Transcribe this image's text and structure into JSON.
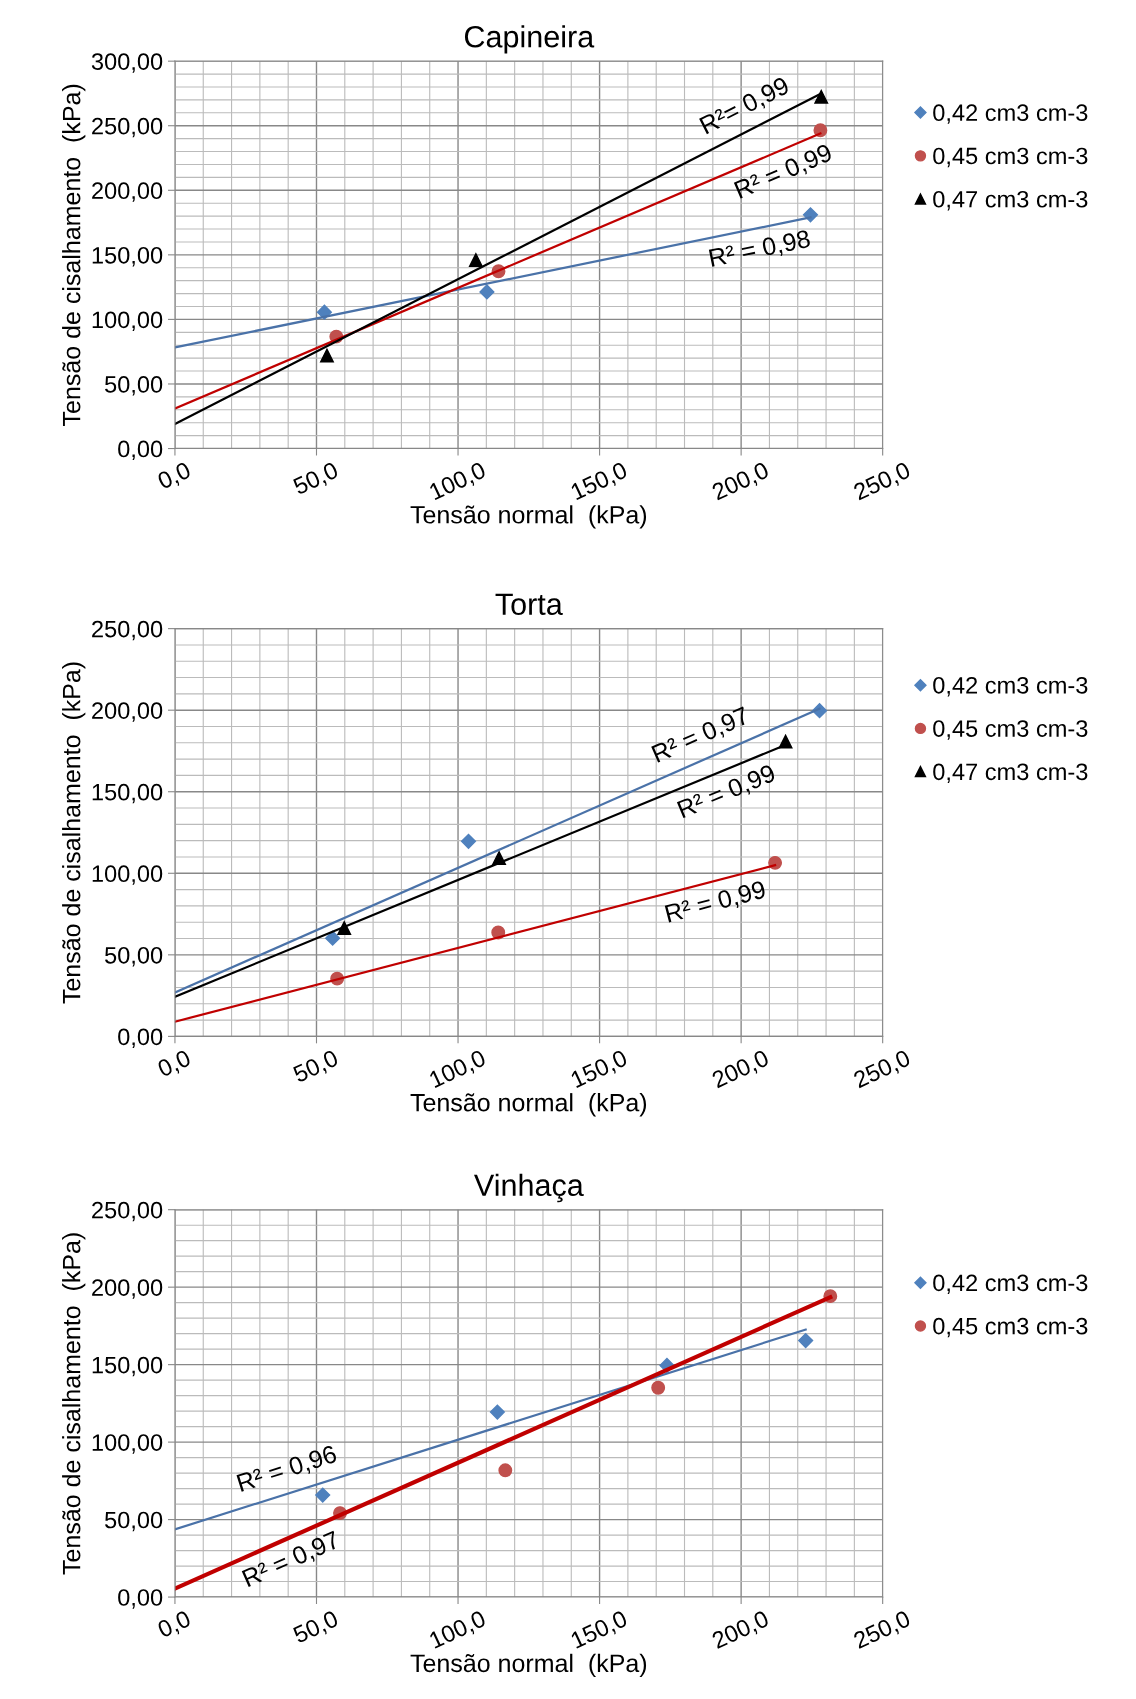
{
  "chart_data": [
    {
      "type": "scatter",
      "title": "Capineira",
      "xlabel": "Tensão normal  (kPa)",
      "ylabel": "Tensão de cisalhamento  (kPa)",
      "legend": "right",
      "grid": true,
      "xlim": [
        0,
        250
      ],
      "xticks": [
        {
          "value": 0,
          "label": "0,0"
        },
        {
          "value": 50,
          "label": "50,0"
        },
        {
          "value": 100,
          "label": "100,0"
        },
        {
          "value": 150,
          "label": "150,0"
        },
        {
          "value": 200,
          "label": "200,0"
        },
        {
          "value": 250,
          "label": "250,0"
        }
      ],
      "ylim": [
        0,
        300
      ],
      "yticks": [
        {
          "value": 0,
          "label": "0,00"
        },
        {
          "value": 50,
          "label": "50,00"
        },
        {
          "value": 100,
          "label": "100,00"
        },
        {
          "value": 150,
          "label": "150,00"
        },
        {
          "value": 200,
          "label": "200,00"
        },
        {
          "value": 250,
          "label": "250,00"
        },
        {
          "value": 300,
          "label": "300,00"
        }
      ],
      "series": [
        {
          "name": "0,42 cm3 cm-3",
          "marker": "diamond",
          "color": "#4f81bd",
          "x": [
            52.8,
            110.2,
            224.5
          ],
          "values": [
            105.6,
            121.3,
            181
          ]
        },
        {
          "name": "0,45 cm3 cm-3",
          "marker": "circle",
          "color": "#c0504d",
          "x": [
            57,
            114.3,
            228
          ],
          "values": [
            86.7,
            137.3,
            246.5
          ]
        },
        {
          "name": "0,47 cm3 cm-3",
          "marker": "triangle",
          "color": "#000000",
          "x": [
            53.7,
            106.3,
            228.3
          ],
          "values": [
            72,
            146,
            272.4
          ]
        },
        {
          "type": "line",
          "marker": "none",
          "color": "#4a72a8",
          "x": [
            0,
            224.5
          ],
          "values": [
            78.3,
            179
          ]
        },
        {
          "type": "line",
          "marker": "none",
          "color": "#c00000",
          "x": [
            0,
            228
          ],
          "values": [
            31,
            244
          ]
        },
        {
          "type": "line",
          "marker": "none",
          "color": "#000000",
          "x": [
            0,
            228.3
          ],
          "values": [
            19,
            275
          ]
        }
      ],
      "annotations": [
        {
          "text": "R²= 0,99",
          "x": 205,
          "y": 248.9
        },
        {
          "text": "R² = 0,99",
          "x": 212,
          "y": 229.1
        },
        {
          "text": "R² = 0,98",
          "x": 205,
          "y": 170.3
        }
      ]
    },
    {
      "type": "scatter",
      "title": "Torta",
      "xlabel": "Tensão normal  (kPa)",
      "ylabel": "Tensão de cisalhamento  (kPa)",
      "legend": "right",
      "grid": true,
      "xlim": [
        0,
        250
      ],
      "xticks": [
        {
          "value": 0,
          "label": "0,0"
        },
        {
          "value": 50,
          "label": "50,0"
        },
        {
          "value": 100,
          "label": "100,0"
        },
        {
          "value": 150,
          "label": "150,0"
        },
        {
          "value": 200,
          "label": "200,0"
        },
        {
          "value": 250,
          "label": "250,0"
        }
      ],
      "ylim": [
        0,
        250
      ],
      "yticks": [
        {
          "value": 0,
          "label": "0,00"
        },
        {
          "value": 50,
          "label": "50,00"
        },
        {
          "value": 100,
          "label": "100,00"
        },
        {
          "value": 150,
          "label": "150,00"
        },
        {
          "value": 200,
          "label": "200,00"
        },
        {
          "value": 250,
          "label": "250,00"
        }
      ],
      "series": [
        {
          "name": "0,42 cm3 cm-3",
          "marker": "diamond",
          "color": "#4f81bd",
          "x": [
            55.7,
            103.7,
            227.7
          ],
          "values": [
            60.2,
            119.6,
            199.7
          ]
        },
        {
          "name": "0,45 cm3 cm-3",
          "marker": "circle",
          "color": "#c0504d",
          "x": [
            57.3,
            114.2,
            212
          ],
          "values": [
            35.4,
            63.7,
            106.4
          ]
        },
        {
          "name": "0,47 cm3 cm-3",
          "marker": "triangle",
          "color": "#000000",
          "x": [
            59.8,
            114.5,
            215.7
          ],
          "values": [
            66.4,
            109.4,
            180.7
          ]
        },
        {
          "type": "line",
          "marker": "none",
          "color": "#4a72a8",
          "x": [
            0,
            227.7
          ],
          "values": [
            26.9,
            200.9
          ]
        },
        {
          "type": "line",
          "marker": "none",
          "color": "#c00000",
          "x": [
            0,
            212
          ],
          "values": [
            9,
            105
          ]
        },
        {
          "type": "line",
          "marker": "none",
          "color": "#000000",
          "x": [
            0,
            215.7
          ],
          "values": [
            24.3,
            178.7
          ]
        }
      ],
      "annotations": [
        {
          "text": "R² = 0,97",
          "x": 189,
          "y": 171.3
        },
        {
          "text": "R² = 0,99",
          "x": 192,
          "y": 161.7
        },
        {
          "text": "R² = 0,99",
          "x": 189,
          "y": 94.6
        }
      ]
    },
    {
      "type": "scatter",
      "title": "Vinhaça",
      "xlabel": "Tensão normal  (kPa)",
      "ylabel": "Tensão de cisalhamento  (kPa)",
      "legend": "right",
      "grid": true,
      "xlim": [
        0,
        250
      ],
      "xticks": [
        {
          "value": 0,
          "label": "0,0"
        },
        {
          "value": 50,
          "label": "50,0"
        },
        {
          "value": 100,
          "label": "100,0"
        },
        {
          "value": 150,
          "label": "150,0"
        },
        {
          "value": 200,
          "label": "200,0"
        },
        {
          "value": 250,
          "label": "250,0"
        }
      ],
      "ylim": [
        0,
        250
      ],
      "yticks": [
        {
          "value": 0,
          "label": "0,00"
        },
        {
          "value": 50,
          "label": "50,00"
        },
        {
          "value": 100,
          "label": "100,00"
        },
        {
          "value": 150,
          "label": "150,00"
        },
        {
          "value": 200,
          "label": "200,00"
        },
        {
          "value": 250,
          "label": "250,00"
        }
      ],
      "series": [
        {
          "name": "0,42 cm3 cm-3",
          "marker": "diamond",
          "color": "#4f81bd",
          "x": [
            52.2,
            113.9,
            173.8,
            222.8
          ],
          "values": [
            65.8,
            119.4,
            149.5,
            165.5
          ]
        },
        {
          "name": "0,45 cm3 cm-3",
          "marker": "circle",
          "color": "#c0504d",
          "x": [
            58.3,
            116.7,
            170.7,
            231.5
          ],
          "values": [
            54.2,
            81.8,
            135.1,
            194.2
          ]
        },
        {
          "type": "line",
          "marker": "none",
          "color": "#4a72a8",
          "x": [
            0,
            222.8
          ],
          "values": [
            43.7,
            172.6
          ]
        },
        {
          "type": "line",
          "marker": "none",
          "color": "#c00000",
          "x": [
            0,
            231.5
          ],
          "values": [
            5.5,
            193.5
          ]
        }
      ],
      "annotations": [
        {
          "text": "R² = 0,96",
          "x": 42,
          "y": 68
        },
        {
          "text": "R² = 0,97",
          "x": 38,
          "y": 36.4
        }
      ]
    }
  ]
}
